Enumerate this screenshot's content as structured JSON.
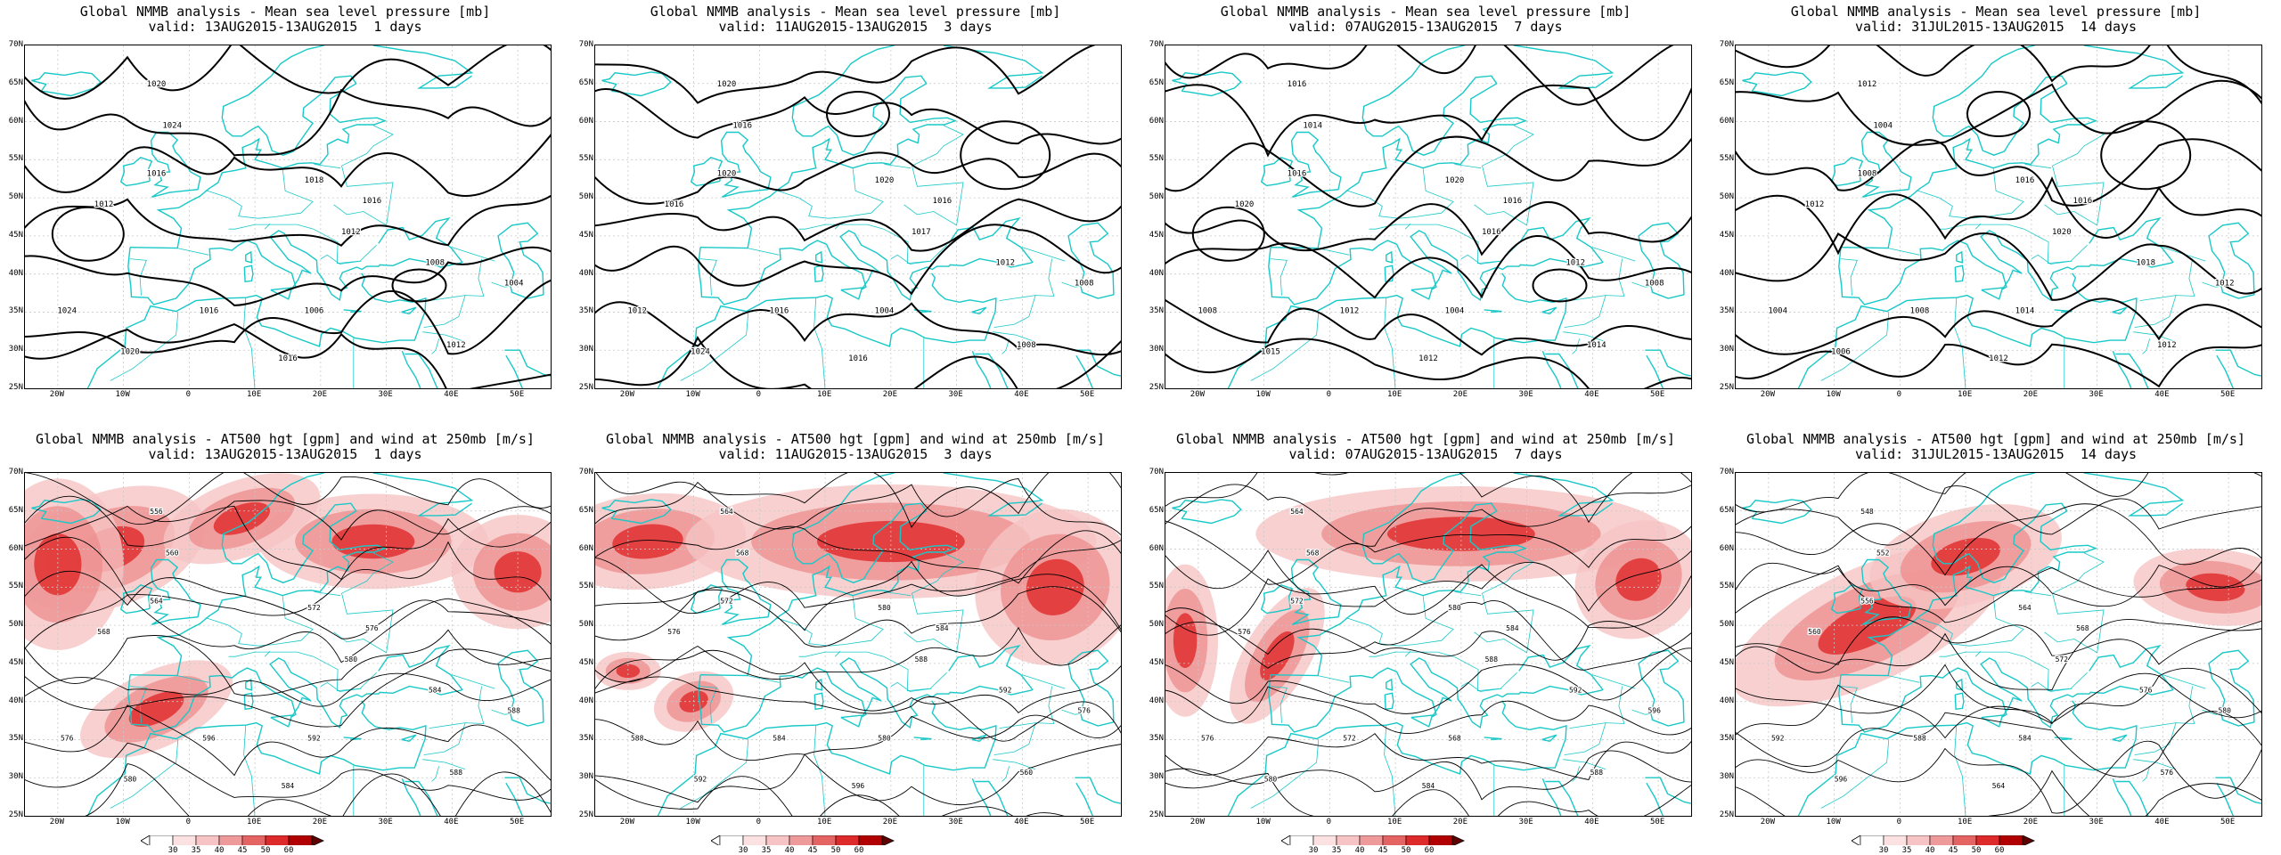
{
  "top_row": [
    {
      "line1": "Global NMMB analysis - Mean sea level pressure [mb]",
      "line2": "valid: 13AUG2015-13AUG2015  1 days",
      "contour_labels": [
        "1020",
        "1024",
        "1016",
        "1012",
        "1018",
        "1016",
        "1012",
        "1008",
        "1004",
        "1006",
        "1016",
        "1024",
        "1020",
        "1016",
        "1012"
      ]
    },
    {
      "line1": "Global NMMB analysis - Mean sea level pressure [mb]",
      "line2": "valid: 11AUG2015-13AUG2015  3 days",
      "contour_labels": [
        "1020",
        "1016",
        "1020",
        "1016",
        "1020",
        "1016",
        "1017",
        "1012",
        "1008",
        "1004",
        "1016",
        "1012",
        "1024",
        "1016",
        "1008"
      ]
    },
    {
      "line1": "Global NMMB analysis - Mean sea level pressure [mb]",
      "line2": "valid: 07AUG2015-13AUG2015  7 days",
      "contour_labels": [
        "1016",
        "1014",
        "1016",
        "1020",
        "1020",
        "1016",
        "1016",
        "1012",
        "1008",
        "1004",
        "1012",
        "1008",
        "1015",
        "1012",
        "1014"
      ]
    },
    {
      "line1": "Global NMMB analysis - Mean sea level pressure [mb]",
      "line2": "valid: 31JUL2015-13AUG2015  14 days",
      "contour_labels": [
        "1012",
        "1004",
        "1008",
        "1012",
        "1016",
        "1016",
        "1020",
        "1018",
        "1012",
        "1014",
        "1008",
        "1004",
        "1006",
        "1012",
        "1012"
      ]
    }
  ],
  "bottom_row": [
    {
      "line1": "Global NMMB analysis - AT500 hgt [gpm] and wind at 250mb [m/s]",
      "line2": "valid: 13AUG2015-13AUG2015  1 days",
      "contour_labels": [
        "556",
        "560",
        "564",
        "568",
        "572",
        "576",
        "580",
        "584",
        "588",
        "592",
        "596",
        "576",
        "580",
        "584",
        "588"
      ]
    },
    {
      "line1": "Global NMMB analysis - AT500 hgt [gpm] and wind at 250mb [m/s]",
      "line2": "valid: 11AUG2015-13AUG2015  3 days",
      "contour_labels": [
        "564",
        "568",
        "572",
        "576",
        "580",
        "584",
        "588",
        "592",
        "576",
        "580",
        "584",
        "588",
        "592",
        "596",
        "560"
      ]
    },
    {
      "line1": "Global NMMB analysis - AT500 hgt [gpm] and wind at 250mb [m/s]",
      "line2": "valid: 07AUG2015-13AUG2015  7 days",
      "contour_labels": [
        "564",
        "568",
        "572",
        "576",
        "580",
        "584",
        "588",
        "592",
        "596",
        "568",
        "572",
        "576",
        "580",
        "584",
        "588"
      ]
    },
    {
      "line1": "Global NMMB analysis - AT500 hgt [gpm] and wind at 250mb [m/s]",
      "line2": "valid: 31JUL2015-13AUG2015  14 days",
      "contour_labels": [
        "548",
        "552",
        "556",
        "560",
        "564",
        "568",
        "572",
        "576",
        "580",
        "584",
        "588",
        "592",
        "596",
        "564",
        "576"
      ]
    }
  ],
  "lat_labels": [
    "70N",
    "65N",
    "60N",
    "55N",
    "50N",
    "45N",
    "40N",
    "35N",
    "30N",
    "25N"
  ],
  "lon_labels": [
    "20W",
    "10W",
    "0",
    "10E",
    "20E",
    "30E",
    "40E",
    "50E"
  ],
  "colorbar_labels": [
    "30",
    "35",
    "40",
    "45",
    "50",
    "60"
  ],
  "colors": {
    "coast": "#19c8c8",
    "contour": "#000000",
    "jet_light": "#f6c4c4",
    "jet_mid": "#ee8c8c",
    "jet_dark": "#dd1a1a",
    "grid": "#c8c8c8"
  }
}
